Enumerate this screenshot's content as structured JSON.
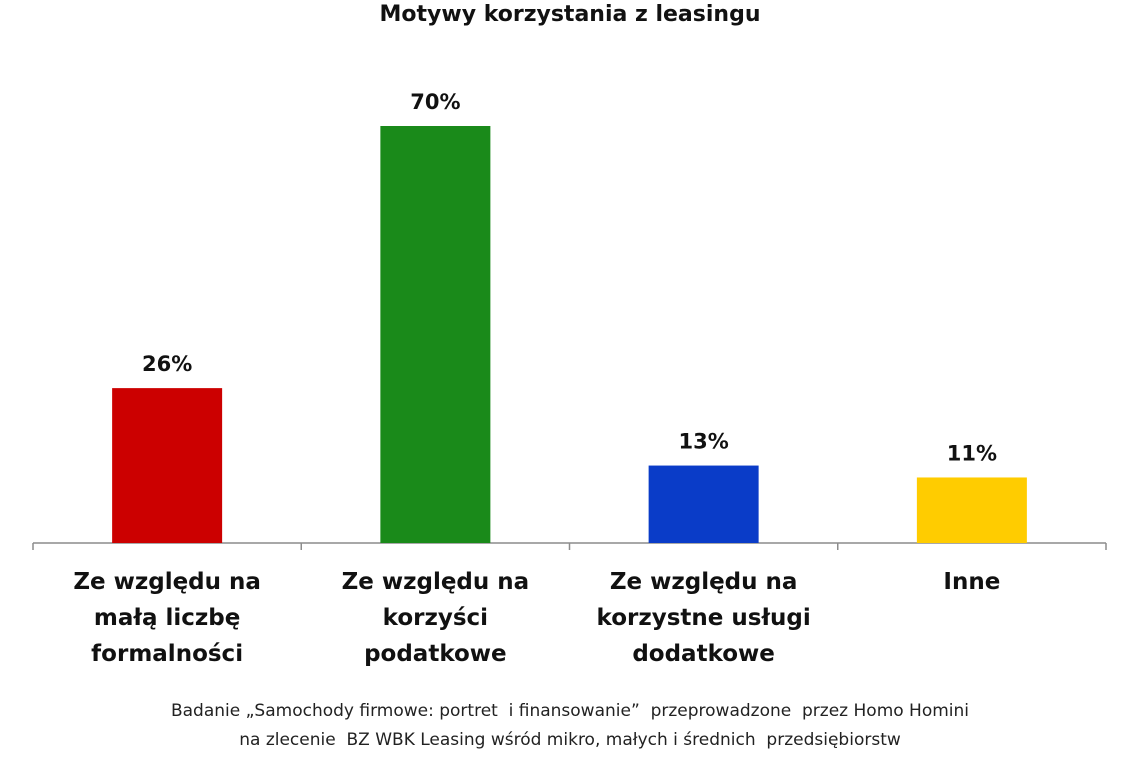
{
  "chart_data": {
    "type": "bar",
    "title": "Motywy korzystania z leasingu",
    "categories": [
      [
        "Ze względu na",
        "małą liczbę",
        "formalności"
      ],
      [
        "Ze względu na",
        "korzyści",
        "podatkowe"
      ],
      [
        "Ze względu na",
        "korzystne usługi",
        "dodatkowe"
      ],
      [
        "Inne"
      ]
    ],
    "values": [
      26,
      70,
      13,
      11
    ],
    "value_labels": [
      "26%",
      "70%",
      "13%",
      "11%"
    ],
    "colors": [
      "#cc0000",
      "#1a8a1a",
      "#0a3cc8",
      "#ffcc00"
    ],
    "ylim": [
      0,
      70
    ],
    "xlabel": "",
    "ylabel": "",
    "grid": false,
    "legend": false
  },
  "footnote": {
    "line1": "Badanie „Samochody firmowe: portret  i finansowanie”  przeprowadzone  przez Homo Homini",
    "line2": "na zlecenie  BZ WBK Leasing wśród mikro, małych i średnich  przedsiębiorstw"
  }
}
